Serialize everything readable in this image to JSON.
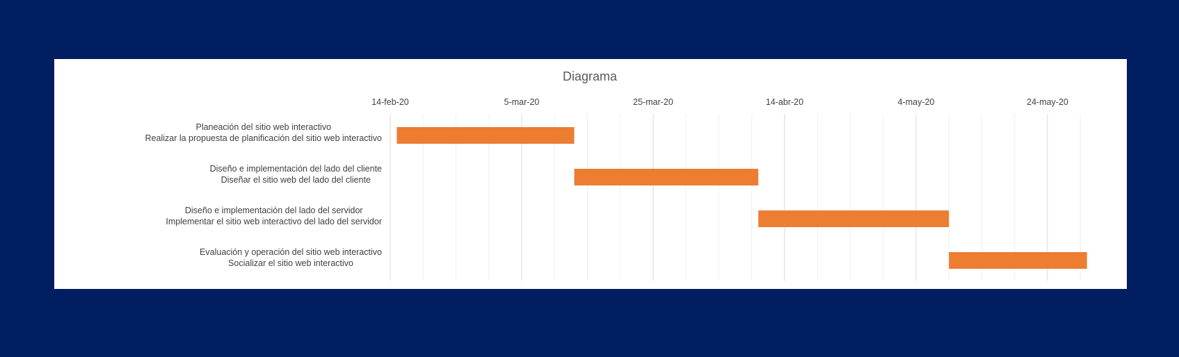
{
  "chart_data": {
    "type": "bar",
    "orientation": "horizontal",
    "subtype": "gantt",
    "title": "Diagrama",
    "x_axis": {
      "position": "top",
      "min": "2020-02-14",
      "max": "2020-06-01",
      "ticks": [
        {
          "date": "2020-02-14",
          "label": "14-feb-20"
        },
        {
          "date": "2020-03-05",
          "label": "5-mar-20"
        },
        {
          "date": "2020-03-25",
          "label": "25-mar-20"
        },
        {
          "date": "2020-04-14",
          "label": "14-abr-20"
        },
        {
          "date": "2020-05-04",
          "label": "4-may-20"
        },
        {
          "date": "2020-05-24",
          "label": "24-may-20"
        }
      ]
    },
    "grid": true,
    "colors": {
      "bar": "#ed7d31",
      "background": "#001e60",
      "panel": "#ffffff"
    },
    "tasks": [
      {
        "label_lines": [
          "Planeación del sitio web interactivo",
          "Realizar la propuesta de planificación del sitio web interactivo"
        ],
        "start": "2020-02-15",
        "end": "2020-03-13"
      },
      {
        "label_lines": [
          "Diseño e implementación del lado del cliente",
          "Diseñar el sitio web del lado del cliente"
        ],
        "start": "2020-03-13",
        "end": "2020-04-10"
      },
      {
        "label_lines": [
          "Diseño e implementación del lado del servidor",
          "Implementar el sitio web interactivo del lado del servidor"
        ],
        "start": "2020-04-10",
        "end": "2020-05-09"
      },
      {
        "label_lines": [
          "Evaluación y operación del sitio web interactivo",
          "Socializar el sitio web interactivo"
        ],
        "start": "2020-05-09",
        "end": "2020-05-30"
      }
    ]
  }
}
